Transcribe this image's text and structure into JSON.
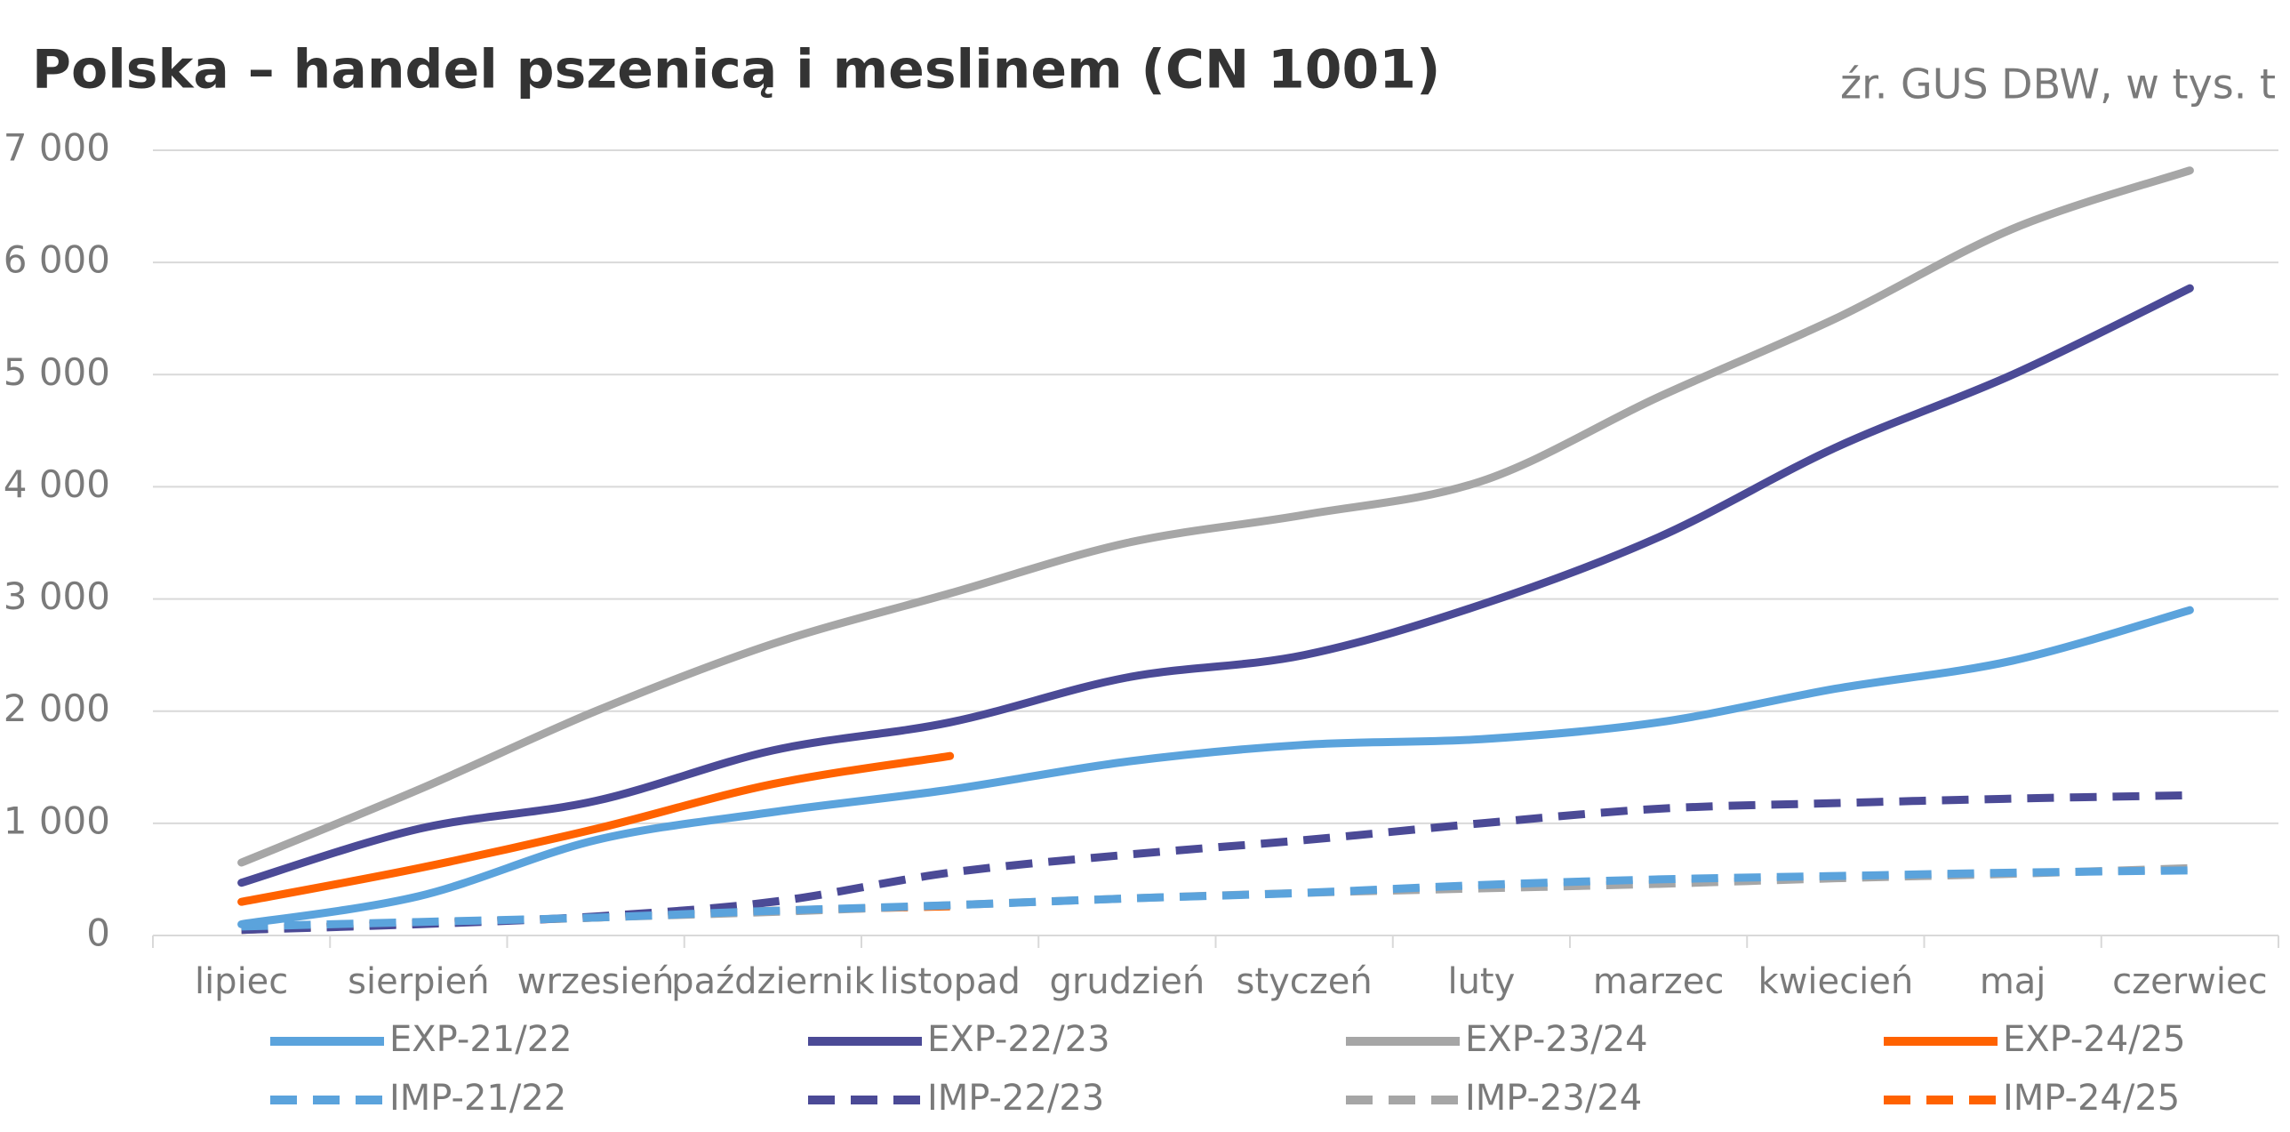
{
  "chart_data": {
    "type": "line",
    "title": "Polska – handel pszenicą i meslinem (CN 1001)",
    "subtitle": "źr. GUS DBW, w tys. t",
    "categories": [
      "lipiec",
      "sierpień",
      "wrzesień",
      "październik",
      "listopad",
      "grudzień",
      "styczeń",
      "luty",
      "marzec",
      "kwiecień",
      "maj",
      "czerwiec"
    ],
    "series": [
      {
        "name": "EXP-21/22",
        "color": "#5ba3dc",
        "dashed": false,
        "values": [
          100,
          350,
          850,
          1100,
          1300,
          1550,
          1700,
          1750,
          1900,
          2200,
          2450,
          2900
        ]
      },
      {
        "name": "EXP-22/23",
        "color": "#4b4a96",
        "dashed": false,
        "values": [
          470,
          950,
          1200,
          1650,
          1900,
          2300,
          2500,
          2950,
          3550,
          4350,
          5000,
          5770
        ]
      },
      {
        "name": "EXP-23/24",
        "color": "#a6a6a6",
        "dashed": false,
        "values": [
          650,
          1300,
          2000,
          2600,
          3050,
          3500,
          3750,
          4050,
          4800,
          5500,
          6300,
          6820
        ]
      },
      {
        "name": "EXP-24/25",
        "color": "#ff6200",
        "dashed": false,
        "values": [
          300,
          600,
          950,
          1350,
          1600,
          null,
          null,
          null,
          null,
          null,
          null,
          null
        ]
      },
      {
        "name": "IMP-21/22",
        "color": "#5ba3dc",
        "dashed": true,
        "values": [
          80,
          120,
          160,
          220,
          270,
          330,
          380,
          450,
          500,
          530,
          560,
          580
        ]
      },
      {
        "name": "IMP-22/23",
        "color": "#4b4a96",
        "dashed": true,
        "values": [
          50,
          100,
          170,
          300,
          560,
          720,
          850,
          1000,
          1130,
          1180,
          1220,
          1250
        ]
      },
      {
        "name": "IMP-23/24",
        "color": "#a6a6a6",
        "dashed": true,
        "values": [
          50,
          110,
          160,
          210,
          270,
          330,
          380,
          420,
          460,
          510,
          550,
          600
        ]
      },
      {
        "name": "IMP-24/25",
        "color": "#ff6200",
        "dashed": true,
        "values": [
          50,
          110,
          160,
          220,
          260,
          null,
          null,
          null,
          null,
          null,
          null,
          null
        ]
      }
    ],
    "ylim": [
      0,
      7000
    ],
    "yticks": [
      0,
      {
        "value": 1000,
        "label": "1 000"
      },
      {
        "value": 2000,
        "label": "2 000"
      },
      {
        "value": 3000,
        "label": "3 000"
      },
      {
        "value": 4000,
        "label": "4 000"
      },
      {
        "value": 5000,
        "label": "5 000"
      },
      {
        "value": 6000,
        "label": "6 000"
      },
      {
        "value": 7000,
        "label": "7 000"
      }
    ],
    "grid": true
  }
}
